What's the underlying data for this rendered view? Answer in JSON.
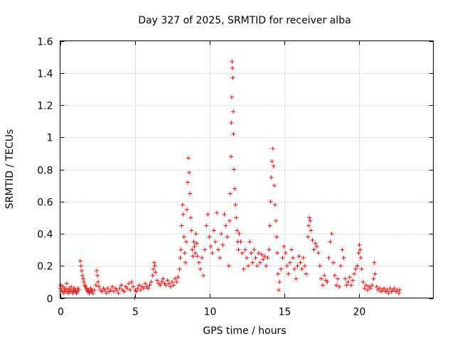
{
  "chart_data": {
    "type": "scatter",
    "title": "Day 327 of 2025, SRMTID for receiver alba",
    "xlabel": "GPS time / hours",
    "ylabel": "SRMTID / TECUs",
    "xlim": [
      0,
      25
    ],
    "ylim": [
      0,
      1.6
    ],
    "x_ticks": [
      0,
      5,
      10,
      15,
      20
    ],
    "y_ticks": [
      0,
      0.2,
      0.4,
      0.6,
      0.8,
      1,
      1.2,
      1.4,
      1.6
    ],
    "x_tick_labels": [
      "0",
      "5",
      "10",
      "15",
      "20"
    ],
    "y_tick_labels": [
      "0",
      "0.2",
      "0.4",
      "0.6",
      "0.8",
      "1",
      "1.2",
      "1.4",
      "1.6"
    ],
    "grid": true,
    "marker": "plus",
    "color": "#ff0000",
    "series": [
      {
        "name": "SRMTID",
        "points": [
          [
            0.0,
            0.06
          ],
          [
            0.05,
            0.08
          ],
          [
            0.1,
            0.05
          ],
          [
            0.15,
            0.04
          ],
          [
            0.2,
            0.07
          ],
          [
            0.25,
            0.03
          ],
          [
            0.3,
            0.05
          ],
          [
            0.35,
            0.06
          ],
          [
            0.4,
            0.04
          ],
          [
            0.45,
            0.09
          ],
          [
            0.5,
            0.05
          ],
          [
            0.55,
            0.03
          ],
          [
            0.6,
            0.06
          ],
          [
            0.65,
            0.04
          ],
          [
            0.7,
            0.05
          ],
          [
            0.75,
            0.07
          ],
          [
            0.8,
            0.04
          ],
          [
            0.85,
            0.03
          ],
          [
            0.9,
            0.05
          ],
          [
            0.95,
            0.06
          ],
          [
            1.0,
            0.04
          ],
          [
            1.05,
            0.05
          ],
          [
            1.1,
            0.03
          ],
          [
            1.15,
            0.04
          ],
          [
            1.2,
            0.06
          ],
          [
            1.25,
            0.05
          ],
          [
            1.35,
            0.23
          ],
          [
            1.4,
            0.2
          ],
          [
            1.45,
            0.17
          ],
          [
            1.5,
            0.14
          ],
          [
            1.55,
            0.12
          ],
          [
            1.6,
            0.1
          ],
          [
            1.65,
            0.08
          ],
          [
            1.7,
            0.07
          ],
          [
            1.75,
            0.06
          ],
          [
            1.8,
            0.05
          ],
          [
            1.85,
            0.04
          ],
          [
            1.9,
            0.05
          ],
          [
            1.95,
            0.03
          ],
          [
            2.0,
            0.04
          ],
          [
            2.05,
            0.06
          ],
          [
            2.1,
            0.04
          ],
          [
            2.15,
            0.05
          ],
          [
            2.2,
            0.03
          ],
          [
            2.3,
            0.05
          ],
          [
            2.4,
            0.08
          ],
          [
            2.45,
            0.17
          ],
          [
            2.5,
            0.14
          ],
          [
            2.55,
            0.1
          ],
          [
            2.6,
            0.07
          ],
          [
            2.7,
            0.05
          ],
          [
            2.8,
            0.04
          ],
          [
            2.9,
            0.06
          ],
          [
            3.0,
            0.05
          ],
          [
            3.1,
            0.03
          ],
          [
            3.2,
            0.06
          ],
          [
            3.3,
            0.04
          ],
          [
            3.4,
            0.05
          ],
          [
            3.5,
            0.07
          ],
          [
            3.6,
            0.04
          ],
          [
            3.7,
            0.06
          ],
          [
            3.8,
            0.05
          ],
          [
            3.9,
            0.03
          ],
          [
            4.0,
            0.06
          ],
          [
            4.1,
            0.08
          ],
          [
            4.2,
            0.05
          ],
          [
            4.3,
            0.04
          ],
          [
            4.4,
            0.07
          ],
          [
            4.5,
            0.06
          ],
          [
            4.6,
            0.09
          ],
          [
            4.7,
            0.05
          ],
          [
            4.8,
            0.1
          ],
          [
            4.9,
            0.07
          ],
          [
            5.0,
            0.0
          ],
          [
            5.05,
            0.05
          ],
          [
            5.1,
            0.04
          ],
          [
            5.2,
            0.06
          ],
          [
            5.3,
            0.08
          ],
          [
            5.4,
            0.05
          ],
          [
            5.5,
            0.07
          ],
          [
            5.6,
            0.06
          ],
          [
            5.7,
            0.09
          ],
          [
            5.8,
            0.07
          ],
          [
            5.9,
            0.06
          ],
          [
            6.0,
            0.08
          ],
          [
            6.1,
            0.1
          ],
          [
            6.2,
            0.14
          ],
          [
            6.25,
            0.18
          ],
          [
            6.3,
            0.22
          ],
          [
            6.35,
            0.2
          ],
          [
            6.4,
            0.16
          ],
          [
            6.5,
            0.11
          ],
          [
            6.6,
            0.09
          ],
          [
            6.7,
            0.08
          ],
          [
            6.8,
            0.1
          ],
          [
            6.9,
            0.12
          ],
          [
            7.0,
            0.09
          ],
          [
            7.1,
            0.08
          ],
          [
            7.2,
            0.11
          ],
          [
            7.3,
            0.09
          ],
          [
            7.4,
            0.07
          ],
          [
            7.5,
            0.1
          ],
          [
            7.6,
            0.08
          ],
          [
            7.7,
            0.12
          ],
          [
            7.8,
            0.1
          ],
          [
            7.9,
            0.13
          ],
          [
            8.0,
            0.18
          ],
          [
            8.05,
            0.25
          ],
          [
            8.1,
            0.3
          ],
          [
            8.15,
            0.45
          ],
          [
            8.2,
            0.58
          ],
          [
            8.25,
            0.52
          ],
          [
            8.3,
            0.38
          ],
          [
            8.35,
            0.28
          ],
          [
            8.4,
            0.22
          ],
          [
            8.45,
            0.35
          ],
          [
            8.5,
            0.55
          ],
          [
            8.55,
            0.72
          ],
          [
            8.6,
            0.87
          ],
          [
            8.65,
            0.78
          ],
          [
            8.7,
            0.65
          ],
          [
            8.75,
            0.5
          ],
          [
            8.8,
            0.42
          ],
          [
            8.85,
            0.3
          ],
          [
            8.9,
            0.26
          ],
          [
            8.95,
            0.35
          ],
          [
            9.0,
            0.32
          ],
          [
            9.05,
            0.28
          ],
          [
            9.1,
            0.4
          ],
          [
            9.15,
            0.34
          ],
          [
            9.2,
            0.26
          ],
          [
            9.3,
            0.22
          ],
          [
            9.4,
            0.18
          ],
          [
            9.5,
            0.25
          ],
          [
            9.6,
            0.14
          ],
          [
            9.7,
            0.3
          ],
          [
            9.8,
            0.45
          ],
          [
            9.9,
            0.52
          ],
          [
            10.0,
            0.38
          ],
          [
            10.1,
            0.32
          ],
          [
            10.2,
            0.28
          ],
          [
            10.3,
            0.42
          ],
          [
            10.4,
            0.35
          ],
          [
            10.5,
            0.53
          ],
          [
            10.6,
            0.3
          ],
          [
            10.7,
            0.25
          ],
          [
            10.8,
            0.4
          ],
          [
            10.9,
            0.33
          ],
          [
            11.0,
            0.52
          ],
          [
            11.1,
            0.45
          ],
          [
            11.2,
            0.38
          ],
          [
            11.3,
            0.2
          ],
          [
            11.35,
            0.48
          ],
          [
            11.4,
            0.65
          ],
          [
            11.45,
            0.88
          ],
          [
            11.47,
            1.09
          ],
          [
            11.5,
            1.25
          ],
          [
            11.52,
            1.47
          ],
          [
            11.55,
            1.43
          ],
          [
            11.57,
            1.37
          ],
          [
            11.6,
            1.16
          ],
          [
            11.62,
            1.02
          ],
          [
            11.65,
            0.8
          ],
          [
            11.7,
            0.68
          ],
          [
            11.75,
            0.58
          ],
          [
            11.8,
            0.5
          ],
          [
            11.85,
            0.42
          ],
          [
            11.9,
            0.35
          ],
          [
            11.95,
            0.3
          ],
          [
            12.0,
            0.4
          ],
          [
            12.1,
            0.35
          ],
          [
            12.2,
            0.28
          ],
          [
            12.3,
            0.18
          ],
          [
            12.4,
            0.3
          ],
          [
            12.5,
            0.25
          ],
          [
            12.6,
            0.2
          ],
          [
            12.7,
            0.35
          ],
          [
            12.8,
            0.28
          ],
          [
            12.9,
            0.22
          ],
          [
            13.0,
            0.3
          ],
          [
            13.1,
            0.25
          ],
          [
            13.2,
            0.2
          ],
          [
            13.3,
            0.28
          ],
          [
            13.4,
            0.22
          ],
          [
            13.5,
            0.27
          ],
          [
            13.6,
            0.24
          ],
          [
            13.7,
            0.26
          ],
          [
            13.8,
            0.2
          ],
          [
            13.9,
            0.25
          ],
          [
            14.0,
            0.3
          ],
          [
            14.05,
            0.45
          ],
          [
            14.1,
            0.6
          ],
          [
            14.15,
            0.75
          ],
          [
            14.2,
            0.85
          ],
          [
            14.25,
            0.93
          ],
          [
            14.3,
            0.82
          ],
          [
            14.35,
            0.7
          ],
          [
            14.4,
            0.58
          ],
          [
            14.45,
            0.48
          ],
          [
            14.5,
            0.38
          ],
          [
            14.55,
            0.28
          ],
          [
            14.6,
            0.15
          ],
          [
            14.65,
            0.05
          ],
          [
            14.7,
            0.1
          ],
          [
            14.8,
            0.18
          ],
          [
            14.9,
            0.25
          ],
          [
            15.0,
            0.32
          ],
          [
            15.1,
            0.28
          ],
          [
            15.2,
            0.2
          ],
          [
            15.3,
            0.15
          ],
          [
            15.4,
            0.22
          ],
          [
            15.5,
            0.3
          ],
          [
            15.6,
            0.25
          ],
          [
            15.7,
            0.18
          ],
          [
            15.8,
            0.12
          ],
          [
            15.9,
            0.2
          ],
          [
            16.0,
            0.26
          ],
          [
            16.1,
            0.22
          ],
          [
            16.2,
            0.18
          ],
          [
            16.3,
            0.25
          ],
          [
            16.4,
            0.2
          ],
          [
            16.5,
            0.15
          ],
          [
            16.6,
            0.38
          ],
          [
            16.65,
            0.45
          ],
          [
            16.7,
            0.5
          ],
          [
            16.75,
            0.48
          ],
          [
            16.8,
            0.42
          ],
          [
            16.9,
            0.36
          ],
          [
            17.0,
            0.3
          ],
          [
            17.1,
            0.34
          ],
          [
            17.2,
            0.32
          ],
          [
            17.3,
            0.28
          ],
          [
            17.4,
            0.2
          ],
          [
            17.5,
            0.12
          ],
          [
            17.6,
            0.08
          ],
          [
            17.7,
            0.14
          ],
          [
            17.8,
            0.11
          ],
          [
            17.9,
            0.1
          ],
          [
            18.0,
            0.25
          ],
          [
            18.1,
            0.35
          ],
          [
            18.2,
            0.4
          ],
          [
            18.3,
            0.22
          ],
          [
            18.4,
            0.14
          ],
          [
            18.5,
            0.08
          ],
          [
            18.6,
            0.12
          ],
          [
            18.7,
            0.07
          ],
          [
            18.8,
            0.2
          ],
          [
            18.9,
            0.3
          ],
          [
            19.0,
            0.25
          ],
          [
            19.1,
            0.12
          ],
          [
            19.2,
            0.08
          ],
          [
            19.3,
            0.1
          ],
          [
            19.4,
            0.13
          ],
          [
            19.5,
            0.08
          ],
          [
            19.6,
            0.11
          ],
          [
            19.7,
            0.15
          ],
          [
            19.8,
            0.18
          ],
          [
            19.9,
            0.2
          ],
          [
            20.0,
            0.28
          ],
          [
            20.05,
            0.33
          ],
          [
            20.1,
            0.3
          ],
          [
            20.15,
            0.25
          ],
          [
            20.2,
            0.18
          ],
          [
            20.3,
            0.1
          ],
          [
            20.4,
            0.06
          ],
          [
            20.5,
            0.08
          ],
          [
            20.6,
            0.05
          ],
          [
            20.7,
            0.07
          ],
          [
            20.8,
            0.06
          ],
          [
            20.9,
            0.08
          ],
          [
            21.0,
            0.12
          ],
          [
            21.05,
            0.22
          ],
          [
            21.1,
            0.15
          ],
          [
            21.2,
            0.07
          ],
          [
            21.3,
            0.05
          ],
          [
            21.4,
            0.06
          ],
          [
            21.5,
            0.04
          ],
          [
            21.6,
            0.05
          ],
          [
            21.7,
            0.06
          ],
          [
            21.8,
            0.04
          ],
          [
            21.9,
            0.05
          ],
          [
            22.0,
            0.03
          ],
          [
            22.1,
            0.06
          ],
          [
            22.2,
            0.04
          ],
          [
            22.3,
            0.05
          ],
          [
            22.4,
            0.06
          ],
          [
            22.5,
            0.04
          ],
          [
            22.6,
            0.05
          ],
          [
            22.7,
            0.03
          ],
          [
            22.75,
            0.05
          ]
        ]
      }
    ]
  }
}
